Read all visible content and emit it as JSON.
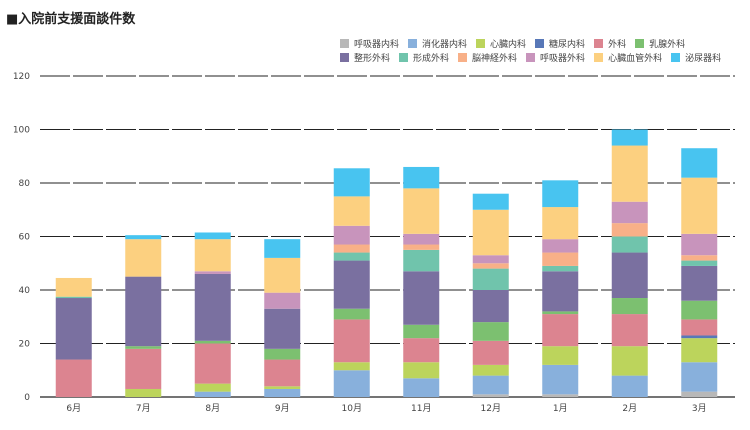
{
  "chart_data": {
    "type": "bar",
    "stacked": true,
    "title": "■入院前支援面談件数",
    "categories": [
      "6月",
      "7月",
      "8月",
      "9月",
      "10月",
      "11月",
      "12月",
      "1月",
      "2月",
      "3月"
    ],
    "ylim": [
      0,
      120
    ],
    "yticks": [
      0,
      20,
      40,
      60,
      80,
      100,
      120
    ],
    "grid": true,
    "legend_position": "top-right",
    "series": [
      {
        "name": "呼吸器内科",
        "color": "#b8b8b8",
        "values": [
          0,
          0,
          0,
          0,
          0,
          0,
          1,
          1,
          0,
          2
        ]
      },
      {
        "name": "消化器内科",
        "color": "#88b0dc",
        "values": [
          0,
          0,
          2,
          3,
          10,
          7,
          7,
          11,
          8,
          11
        ]
      },
      {
        "name": "心臓内科",
        "color": "#bcd45c",
        "values": [
          0,
          3,
          3,
          1,
          3,
          6,
          4,
          7,
          11,
          9
        ]
      },
      {
        "name": "糖尿内科",
        "color": "#5878b8",
        "values": [
          0,
          0,
          0,
          0,
          0,
          0,
          0,
          0,
          0,
          1
        ]
      },
      {
        "name": "外科",
        "color": "#dc8490",
        "values": [
          14,
          15,
          15,
          10,
          16,
          9,
          9,
          12,
          12,
          6
        ]
      },
      {
        "name": "乳腺外科",
        "color": "#7cc070",
        "values": [
          0,
          1,
          1,
          4,
          4,
          5,
          7,
          1,
          6,
          7
        ]
      },
      {
        "name": "整形外科",
        "color": "#7a70a0",
        "values": [
          23,
          26,
          25,
          15,
          18,
          20,
          12,
          15,
          17,
          13
        ]
      },
      {
        "name": "形成外科",
        "color": "#70c4ac",
        "values": [
          0.5,
          0,
          0,
          0,
          3,
          8,
          8,
          2,
          6,
          2
        ]
      },
      {
        "name": "脳神経外科",
        "color": "#f8b088",
        "values": [
          0,
          0,
          0,
          0,
          3,
          2,
          2,
          5,
          5,
          2
        ]
      },
      {
        "name": "呼吸器外科",
        "color": "#c894bc",
        "values": [
          0,
          0,
          1,
          6,
          7,
          4,
          3,
          5,
          8,
          8
        ]
      },
      {
        "name": "心臓血管外科",
        "color": "#fcd080",
        "values": [
          7,
          14,
          12,
          13,
          11,
          17,
          17,
          12,
          21,
          21
        ]
      },
      {
        "name": "泌尿器科",
        "color": "#48c4f0",
        "values": [
          0,
          1.5,
          2.5,
          7,
          10.5,
          8,
          6,
          10,
          6,
          11
        ]
      }
    ]
  }
}
